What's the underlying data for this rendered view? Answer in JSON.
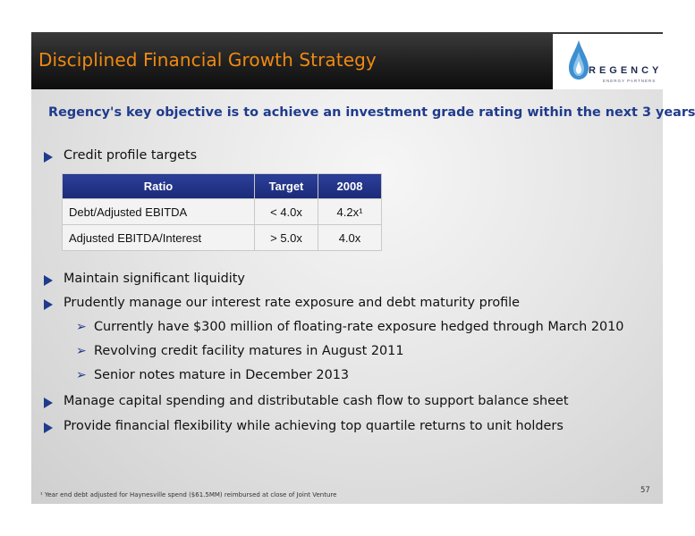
{
  "title": "Disciplined Financial Growth Strategy",
  "logo": {
    "word": "REGENCY",
    "sub": "ENERGY PARTNERS"
  },
  "objective": "Regency's key objective is to achieve an investment grade rating within the next 3 years",
  "credit_heading": "Credit profile targets",
  "table": {
    "headers": [
      "Ratio",
      "Target",
      "2008"
    ],
    "rows": [
      [
        "Debt/Adjusted EBITDA",
        "< 4.0x",
        "4.2x¹"
      ],
      [
        "Adjusted EBITDA/Interest",
        "> 5.0x",
        "4.0x"
      ]
    ]
  },
  "bullets": [
    "Maintain significant liquidity",
    "Prudently manage our interest rate exposure and debt maturity profile",
    "Manage capital spending and distributable cash flow to support balance sheet",
    "Provide financial flexibility while achieving top quartile returns to unit holders"
  ],
  "sub_bullets": [
    "Currently have $300 million of floating-rate exposure hedged through March 2010",
    "Revolving credit facility matures in August 2011",
    "Senior notes mature in December 2013"
  ],
  "footnote": "¹ Year end debt adjusted for Haynesville spend ($61.5MM) reimbursed at close of Joint Venture",
  "page_number": "57",
  "colors": {
    "title": "#f08a12",
    "accent_blue": "#1f3b8c",
    "table_header": "#1a2a78"
  }
}
